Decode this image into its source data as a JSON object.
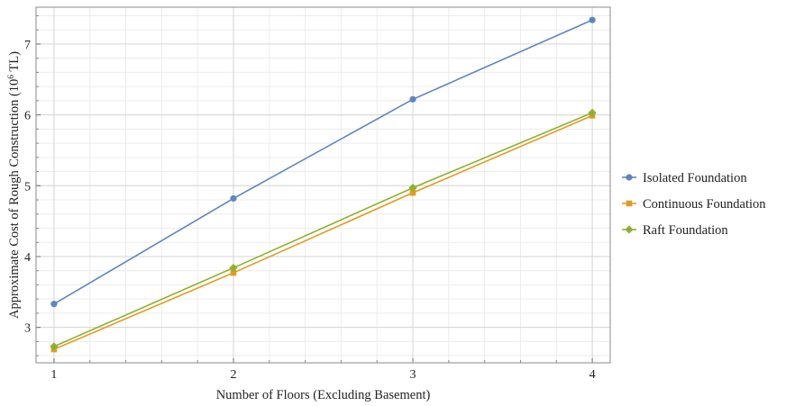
{
  "chart_data": {
    "type": "line",
    "xlabel": "Number of Floors (Excluding Basement)",
    "ylabel": "Approximate Cost of Rough Construction (10",
    "ylabel_sup": "6",
    "ylabel_unit": " TL)",
    "x": [
      1,
      2,
      3,
      4
    ],
    "x_ticks": [
      "1",
      "2",
      "3",
      "4"
    ],
    "y_ticks": [
      "3",
      "4",
      "5",
      "6",
      "7"
    ],
    "xlim": [
      0.9,
      4.1
    ],
    "ylim": [
      2.5,
      7.52
    ],
    "grid": true,
    "legend_position": "right",
    "series": [
      {
        "name": "Isolated Foundation",
        "values": [
          3.33,
          4.82,
          6.22,
          7.34
        ],
        "color": "#5f85be",
        "marker": "circle"
      },
      {
        "name": "Continuous Foundation",
        "values": [
          2.69,
          3.77,
          4.9,
          5.99
        ],
        "color": "#e19c24",
        "marker": "square"
      },
      {
        "name": "Raft Foundation",
        "values": [
          2.73,
          3.84,
          4.97,
          6.03
        ],
        "color": "#8fb032",
        "marker": "diamond"
      }
    ]
  }
}
